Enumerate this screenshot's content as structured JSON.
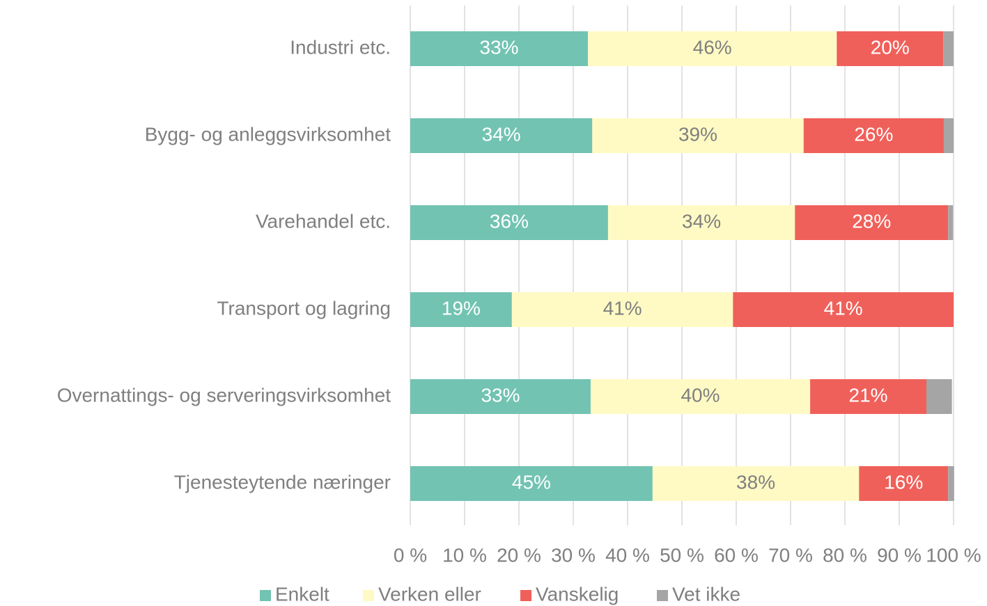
{
  "chart_data": {
    "type": "stacked_bar_horizontal",
    "categories": [
      "Industri etc.",
      "Bygg- og anleggsvirksomhet",
      "Varehandel etc.",
      "Transport og lagring",
      "Overnattings- og serveringsvirksomhet",
      "Tjenesteytende næringer"
    ],
    "series": [
      {
        "name": "Enkelt",
        "color": "#72c3b2",
        "values": [
          32.7,
          33.5,
          36.4,
          18.7,
          33.2,
          44.6
        ],
        "value_labels": [
          "33%",
          "34%",
          "36%",
          "19%",
          "33%",
          "45%"
        ]
      },
      {
        "name": "Verken eller",
        "color": "#fffac4",
        "values": [
          45.8,
          38.9,
          34.4,
          40.7,
          40.4,
          38.0
        ],
        "value_labels": [
          "46%",
          "39%",
          "34%",
          "41%",
          "40%",
          "38%"
        ]
      },
      {
        "name": "Vanskelig",
        "color": "#f0605a",
        "values": [
          19.6,
          25.8,
          28.2,
          40.6,
          21.4,
          16.4
        ],
        "value_labels": [
          "20%",
          "26%",
          "28%",
          "41%",
          "21%",
          "16%"
        ]
      },
      {
        "name": "Vet ikke",
        "color": "#a5a5a5",
        "values": [
          1.9,
          1.8,
          0.9,
          0,
          4.7,
          1.1
        ],
        "value_labels": [
          null,
          null,
          null,
          null,
          null,
          null
        ]
      }
    ],
    "xlim": [
      0,
      100
    ],
    "xticks": [
      {
        "value": 0,
        "label": "0 %"
      },
      {
        "value": 10,
        "label": "10 %"
      },
      {
        "value": 20,
        "label": "20 %"
      },
      {
        "value": 30,
        "label": "30 %"
      },
      {
        "value": 40,
        "label": "40 %"
      },
      {
        "value": 50,
        "label": "50 %"
      },
      {
        "value": 60,
        "label": "60 %"
      },
      {
        "value": 70,
        "label": "70 %"
      },
      {
        "value": 80,
        "label": "80 %"
      },
      {
        "value": 90,
        "label": "90 %"
      },
      {
        "value": 100,
        "label": "100 %"
      }
    ],
    "grid": true,
    "legend": "bottom"
  }
}
